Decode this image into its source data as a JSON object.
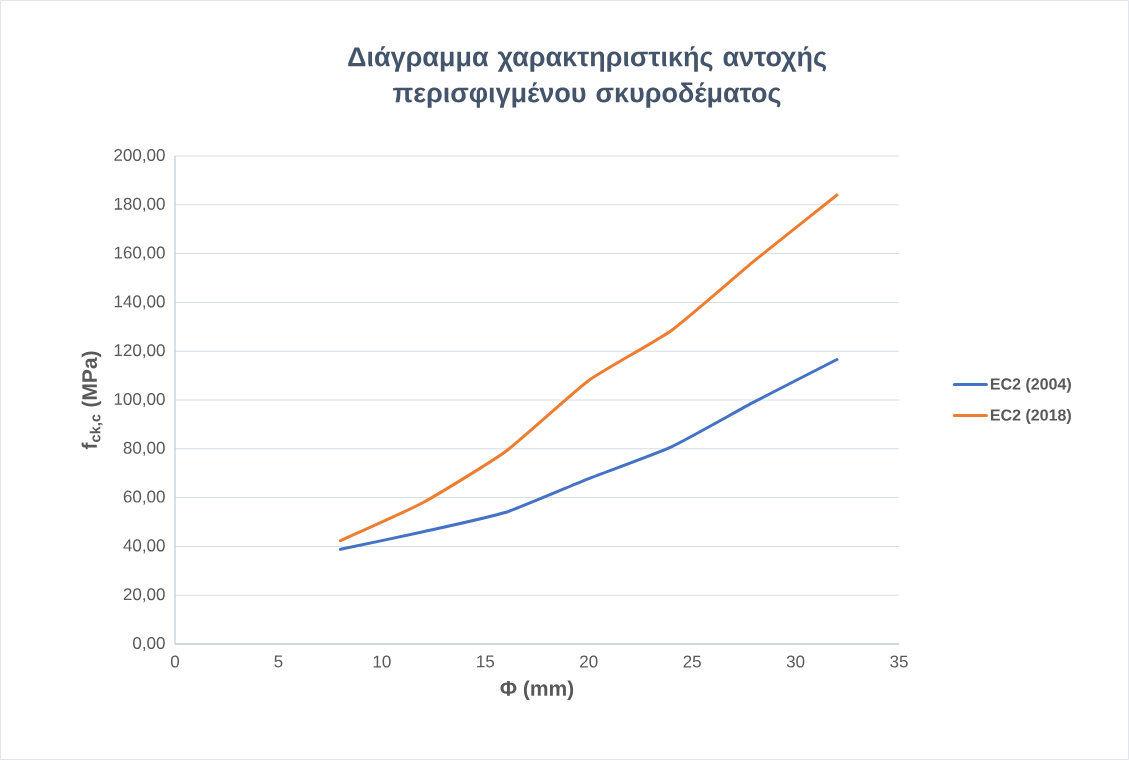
{
  "chart_data": {
    "type": "line",
    "title": "Διάγραμμα χαρακτηριστικής αντοχής περισφιγμένου σκυροδέματος",
    "xlabel": "Φ (mm)",
    "ylabel": "f$_{ck,c}$ (MPa)",
    "x": [
      8,
      12,
      16,
      20,
      24,
      28,
      32
    ],
    "series": [
      {
        "name": "EC2 (2004)",
        "color": "#4472c4",
        "values": [
          38.8,
          46,
          54,
          67.8,
          80.8,
          99.2,
          116.6
        ]
      },
      {
        "name": "EC2 (2018)",
        "color": "#ed7d31",
        "values": [
          42.4,
          58,
          79,
          108,
          128.5,
          157,
          184
        ]
      }
    ],
    "xlim": [
      0,
      35
    ],
    "xticks": [
      0,
      5,
      10,
      15,
      20,
      25,
      30,
      35
    ],
    "ylim": [
      0,
      200
    ],
    "yticks": [
      {
        "value": 0,
        "label": "0,00"
      },
      {
        "value": 20,
        "label": "20,00"
      },
      {
        "value": 40,
        "label": "40,00"
      },
      {
        "value": 60,
        "label": "60,00"
      },
      {
        "value": 80,
        "label": "80,00"
      },
      {
        "value": 100,
        "label": "100,00"
      },
      {
        "value": 120,
        "label": "120,00"
      },
      {
        "value": 140,
        "label": "140,00"
      },
      {
        "value": 160,
        "label": "160,00"
      },
      {
        "value": 180,
        "label": "180,00"
      },
      {
        "value": 200,
        "label": "200,00"
      }
    ],
    "grid": "y",
    "legend": "right",
    "marker": "none",
    "line_style": "solid"
  }
}
